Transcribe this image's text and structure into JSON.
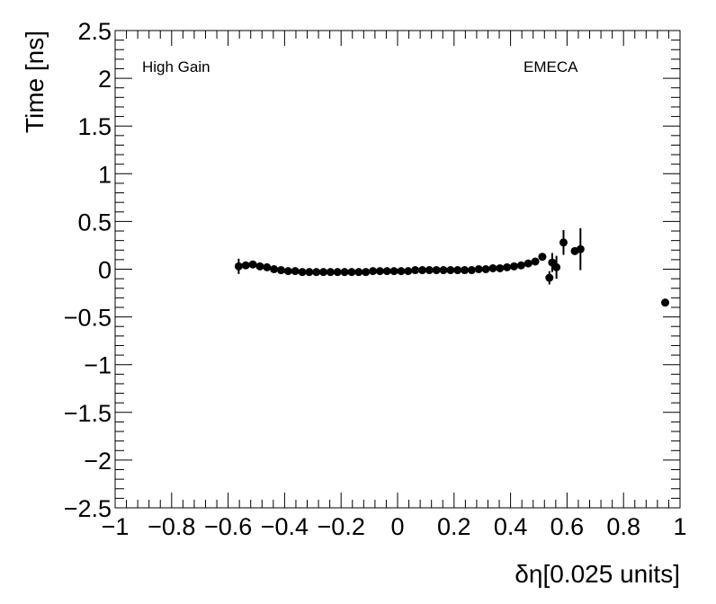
{
  "chart_data": {
    "type": "scatter",
    "xlabel": "δη[0.025 units]",
    "ylabel": "Time [ns]",
    "xlim": [
      -1,
      1
    ],
    "ylim": [
      -2.5,
      2.5
    ],
    "x_ticks": [
      "−1",
      "−0.8",
      "−0.6",
      "−0.4",
      "−0.2",
      "0",
      "0.2",
      "0.4",
      "0.6",
      "0.8",
      "1"
    ],
    "x_tick_values": [
      -1,
      -0.8,
      -0.6,
      -0.4,
      -0.2,
      0,
      0.2,
      0.4,
      0.6,
      0.8,
      1
    ],
    "y_ticks": [
      "−2.5",
      "−2",
      "−1.5",
      "−1",
      "−0.5",
      "0",
      "0.5",
      "1",
      "1.5",
      "2",
      "2.5"
    ],
    "y_tick_values": [
      -2.5,
      -2,
      -1.5,
      -1,
      -0.5,
      0,
      0.5,
      1,
      1.5,
      2,
      2.5
    ],
    "annotations": [
      "High Gain",
      "EMECA"
    ],
    "marker_color": "#000000",
    "points": [
      {
        "x": -0.5625,
        "y": 0.03,
        "err": 0.08
      },
      {
        "x": -0.5375,
        "y": 0.04,
        "err": 0.02
      },
      {
        "x": -0.5125,
        "y": 0.05,
        "err": 0.02
      },
      {
        "x": -0.4875,
        "y": 0.03,
        "err": 0.01
      },
      {
        "x": -0.4625,
        "y": 0.02,
        "err": 0.01
      },
      {
        "x": -0.4375,
        "y": 0.0,
        "err": 0.01
      },
      {
        "x": -0.4125,
        "y": -0.01,
        "err": 0.01
      },
      {
        "x": -0.3875,
        "y": -0.02,
        "err": 0.01
      },
      {
        "x": -0.3625,
        "y": -0.02,
        "err": 0.01
      },
      {
        "x": -0.3375,
        "y": -0.03,
        "err": 0.01
      },
      {
        "x": -0.3125,
        "y": -0.03,
        "err": 0.01
      },
      {
        "x": -0.2875,
        "y": -0.03,
        "err": 0.01
      },
      {
        "x": -0.2625,
        "y": -0.03,
        "err": 0.01
      },
      {
        "x": -0.2375,
        "y": -0.03,
        "err": 0.01
      },
      {
        "x": -0.2125,
        "y": -0.03,
        "err": 0.01
      },
      {
        "x": -0.1875,
        "y": -0.03,
        "err": 0.01
      },
      {
        "x": -0.1625,
        "y": -0.03,
        "err": 0.01
      },
      {
        "x": -0.1375,
        "y": -0.03,
        "err": 0.01
      },
      {
        "x": -0.1125,
        "y": -0.03,
        "err": 0.01
      },
      {
        "x": -0.0875,
        "y": -0.02,
        "err": 0.01
      },
      {
        "x": -0.0625,
        "y": -0.02,
        "err": 0.01
      },
      {
        "x": -0.0375,
        "y": -0.02,
        "err": 0.01
      },
      {
        "x": -0.0125,
        "y": -0.02,
        "err": 0.01
      },
      {
        "x": 0.0125,
        "y": -0.02,
        "err": 0.01
      },
      {
        "x": 0.0375,
        "y": -0.02,
        "err": 0.01
      },
      {
        "x": 0.0625,
        "y": -0.01,
        "err": 0.01
      },
      {
        "x": 0.0875,
        "y": -0.01,
        "err": 0.01
      },
      {
        "x": 0.1125,
        "y": -0.01,
        "err": 0.01
      },
      {
        "x": 0.1375,
        "y": -0.01,
        "err": 0.01
      },
      {
        "x": 0.1625,
        "y": -0.01,
        "err": 0.01
      },
      {
        "x": 0.1875,
        "y": -0.01,
        "err": 0.01
      },
      {
        "x": 0.2125,
        "y": -0.01,
        "err": 0.01
      },
      {
        "x": 0.2375,
        "y": -0.01,
        "err": 0.01
      },
      {
        "x": 0.2625,
        "y": -0.01,
        "err": 0.01
      },
      {
        "x": 0.2875,
        "y": 0.0,
        "err": 0.01
      },
      {
        "x": 0.3125,
        "y": 0.0,
        "err": 0.01
      },
      {
        "x": 0.3375,
        "y": 0.01,
        "err": 0.01
      },
      {
        "x": 0.3625,
        "y": 0.01,
        "err": 0.01
      },
      {
        "x": 0.3875,
        "y": 0.02,
        "err": 0.01
      },
      {
        "x": 0.4125,
        "y": 0.03,
        "err": 0.01
      },
      {
        "x": 0.4375,
        "y": 0.04,
        "err": 0.01
      },
      {
        "x": 0.4625,
        "y": 0.06,
        "err": 0.01
      },
      {
        "x": 0.4875,
        "y": 0.08,
        "err": 0.02
      },
      {
        "x": 0.5125,
        "y": 0.13,
        "err": 0.02
      },
      {
        "x": 0.5375,
        "y": -0.09,
        "err": 0.07
      },
      {
        "x": 0.5475,
        "y": 0.07,
        "err": 0.1
      },
      {
        "x": 0.5625,
        "y": 0.02,
        "err": 0.12
      },
      {
        "x": 0.5875,
        "y": 0.28,
        "err": 0.13
      },
      {
        "x": 0.6275,
        "y": 0.19,
        "err": 0.02
      },
      {
        "x": 0.6475,
        "y": 0.21,
        "err": 0.22
      },
      {
        "x": 0.9475,
        "y": -0.35,
        "err": 0.01
      }
    ]
  }
}
